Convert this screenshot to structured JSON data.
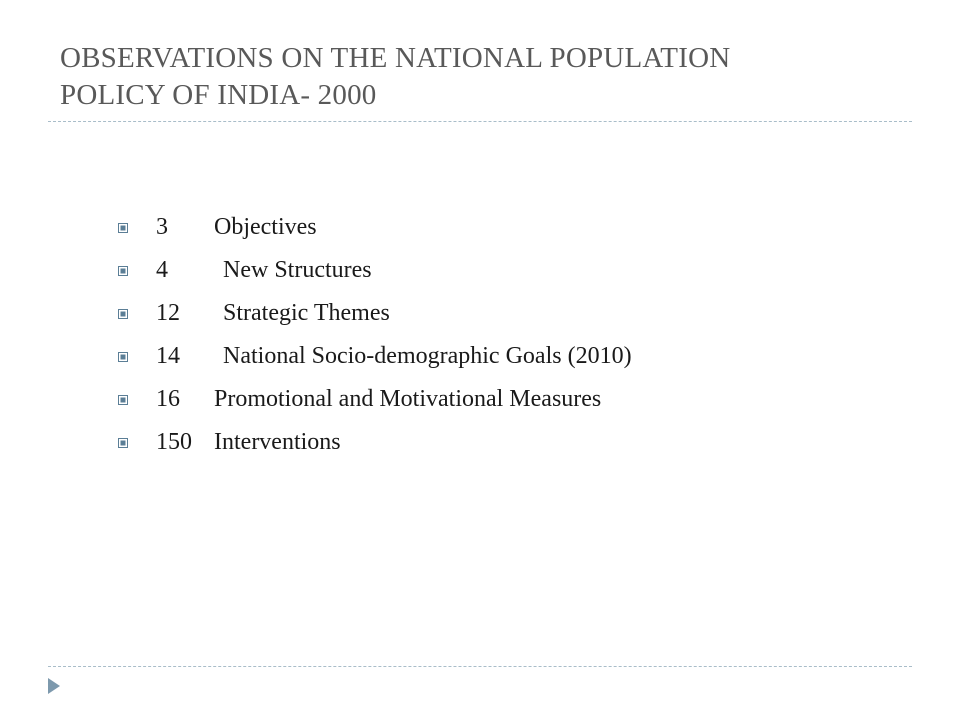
{
  "slide": {
    "title_lines": [
      "OBSERVATIONS ON THE NATIONAL POPULATION",
      "POLICY OF INDIA- 2000"
    ],
    "items": [
      {
        "number": "3",
        "label": "Objectives"
      },
      {
        "number": "4",
        "label": "New Structures"
      },
      {
        "number": "12",
        "label": "Strategic Themes"
      },
      {
        "number": "14",
        "label": "National Socio-demographic Goals (2010)"
      },
      {
        "number": "16",
        "label": "Promotional and Motivational Measures"
      },
      {
        "number": "150",
        "label": "Interventions"
      }
    ],
    "colors": {
      "title": "#595959",
      "text": "#1a1a1a",
      "bullet": "#5b7e96",
      "rule": "#a9bdc9",
      "nav_arrow": "#7d99ad"
    },
    "icons": {
      "bullet": "hollow-square-bullet-icon",
      "nav": "triangle-right-icon"
    }
  }
}
